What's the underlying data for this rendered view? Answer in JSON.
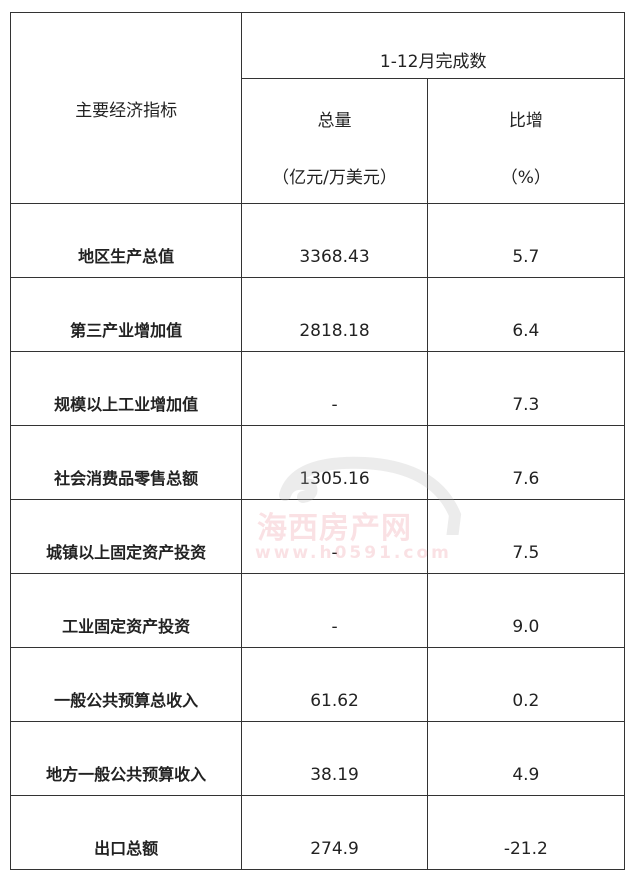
{
  "header": {
    "indicator_label": "主要经济指标",
    "period_label": "1-12月完成数",
    "total_label": "总量",
    "total_unit": "（亿元/万美元）",
    "growth_label": "比增",
    "growth_unit": "（%）"
  },
  "rows": [
    {
      "name": "地区生产总值",
      "total": "3368.43",
      "growth": "5.7"
    },
    {
      "name": "第三产业增加值",
      "total": "2818.18",
      "growth": "6.4"
    },
    {
      "name": "规模以上工业增加值",
      "total": "-",
      "growth": "7.3"
    },
    {
      "name": "社会消费品零售总额",
      "total": "1305.16",
      "growth": "7.6"
    },
    {
      "name": "城镇以上固定资产投资",
      "total": "-",
      "growth": "7.5"
    },
    {
      "name": "工业固定资产投资",
      "total": "-",
      "growth": "9.0"
    },
    {
      "name": "一般公共预算总收入",
      "total": "61.62",
      "growth": "0.2"
    },
    {
      "name": "地方一般公共预算收入",
      "total": "38.19",
      "growth": "4.9"
    },
    {
      "name": "出口总额",
      "total": "274.9",
      "growth": "-21.2"
    }
  ],
  "watermark": {
    "name": "海西房产网",
    "url": "www.h0591.com"
  }
}
